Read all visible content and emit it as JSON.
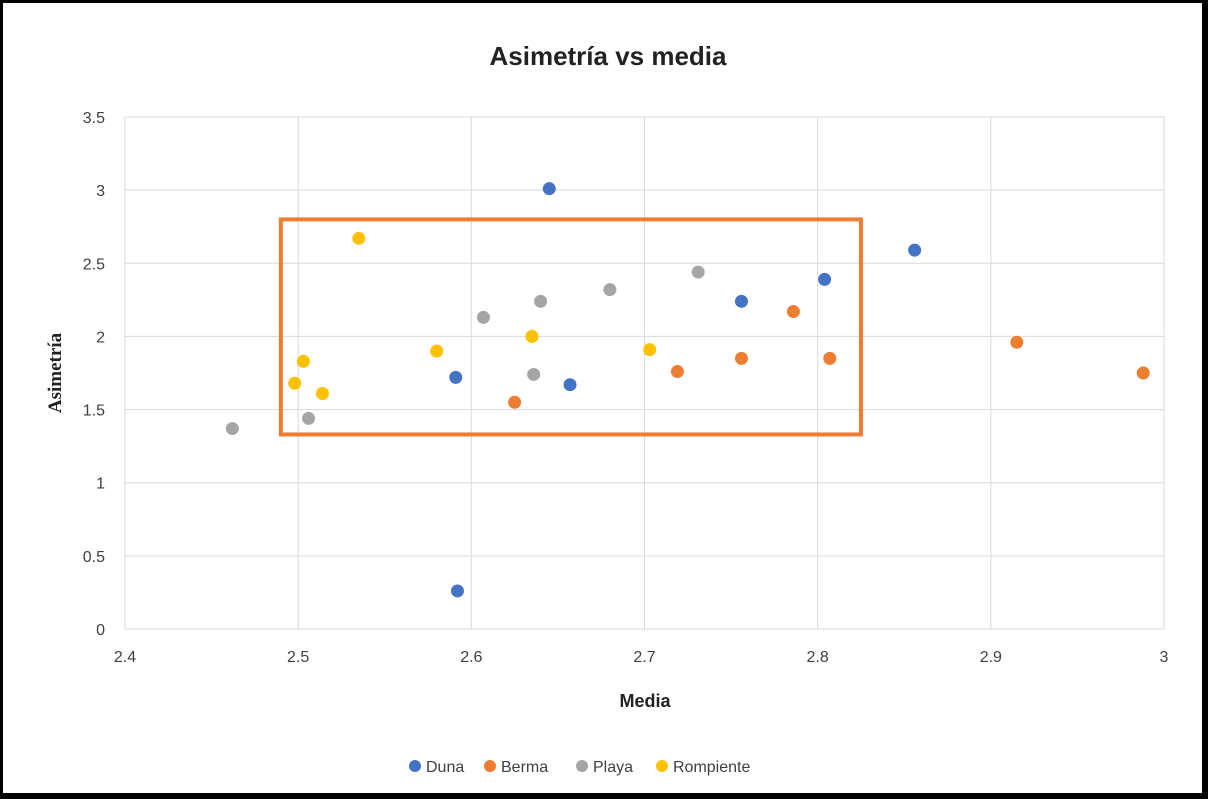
{
  "chart_data": {
    "type": "scatter",
    "title": "Asimetría vs media",
    "xlabel": "Media",
    "ylabel": "Asimetría",
    "xlim": [
      2.4,
      3
    ],
    "ylim": [
      0,
      3.5
    ],
    "xticks": [
      "2.4",
      "2.5",
      "2.6",
      "2.7",
      "2.8",
      "2.9",
      "3"
    ],
    "yticks": [
      "0",
      "0.5",
      "1",
      "1.5",
      "2",
      "2.5",
      "3",
      "3.5"
    ],
    "grid": true,
    "legend_position": "bottom",
    "series": [
      {
        "name": "Duna",
        "color": "#4472C4",
        "points": [
          [
            2.645,
            3.01
          ],
          [
            2.591,
            1.72
          ],
          [
            2.657,
            1.67
          ],
          [
            2.756,
            2.24
          ],
          [
            2.804,
            2.39
          ],
          [
            2.856,
            2.59
          ],
          [
            2.592,
            0.26
          ]
        ]
      },
      {
        "name": "Berma",
        "color": "#ED7D31",
        "points": [
          [
            2.625,
            1.55
          ],
          [
            2.719,
            1.76
          ],
          [
            2.756,
            1.85
          ],
          [
            2.786,
            2.17
          ],
          [
            2.807,
            1.85
          ],
          [
            2.915,
            1.96
          ],
          [
            2.988,
            1.75
          ]
        ]
      },
      {
        "name": "Playa",
        "color": "#A5A5A5",
        "points": [
          [
            2.462,
            1.37
          ],
          [
            2.506,
            1.44
          ],
          [
            2.607,
            2.13
          ],
          [
            2.636,
            1.74
          ],
          [
            2.64,
            2.24
          ],
          [
            2.68,
            2.32
          ],
          [
            2.731,
            2.44
          ]
        ]
      },
      {
        "name": "Rompiente",
        "color": "#FFC000",
        "points": [
          [
            2.498,
            1.68
          ],
          [
            2.503,
            1.83
          ],
          [
            2.514,
            1.61
          ],
          [
            2.535,
            2.67
          ],
          [
            2.58,
            1.9
          ],
          [
            2.635,
            2.0
          ],
          [
            2.703,
            1.91
          ]
        ]
      }
    ],
    "annotations": [
      {
        "type": "rectangle",
        "color": "#ED7D31",
        "x_range": [
          2.49,
          2.825
        ],
        "y_range": [
          1.33,
          2.8
        ]
      }
    ]
  }
}
